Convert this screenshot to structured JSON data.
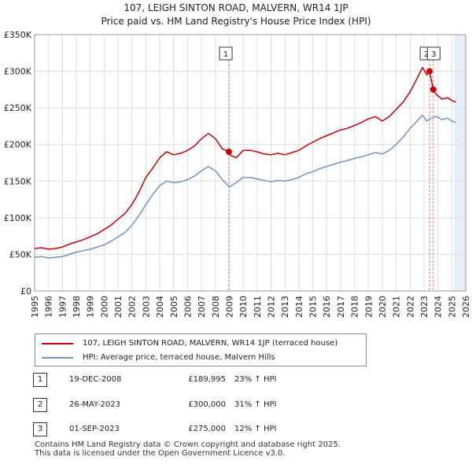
{
  "title": "107, LEIGH SINTON ROAD, MALVERN, WR14 1JP",
  "subtitle": "Price paid vs. HM Land Registry's House Price Index (HPI)",
  "colors": {
    "property": "#cc0000",
    "hpi": "#6f93c9",
    "grid": "#dddddd",
    "shade": "#e6ecf8",
    "marker_line": "#e07a7a"
  },
  "chart_data": {
    "type": "line",
    "title": "107, LEIGH SINTON ROAD, MALVERN, WR14 1JP",
    "subtitle": "Price paid vs. HM Land Registry's House Price Index (HPI)",
    "xlabel": "",
    "ylabel": "",
    "xlim": [
      1995,
      2026
    ],
    "ylim": [
      0,
      350000
    ],
    "x_ticks": [
      1995,
      1996,
      1997,
      1998,
      1999,
      2000,
      2001,
      2002,
      2003,
      2004,
      2005,
      2006,
      2007,
      2008,
      2009,
      2010,
      2011,
      2012,
      2013,
      2014,
      2015,
      2016,
      2017,
      2018,
      2019,
      2020,
      2021,
      2022,
      2023,
      2024,
      2025,
      2026
    ],
    "y_ticks": [
      {
        "value": 0,
        "label": "£0"
      },
      {
        "value": 50000,
        "label": "£50K"
      },
      {
        "value": 100000,
        "label": "£100K"
      },
      {
        "value": 150000,
        "label": "£150K"
      },
      {
        "value": 200000,
        "label": "£200K"
      },
      {
        "value": 250000,
        "label": "£250K"
      },
      {
        "value": 300000,
        "label": "£300K"
      },
      {
        "value": 350000,
        "label": "£350K"
      }
    ],
    "grid": true,
    "future_shade_from": 2025.2,
    "series": [
      {
        "name": "107, LEIGH SINTON ROAD, MALVERN, WR14 1JP (terraced house)",
        "color": "#cc0000",
        "points": [
          [
            1995.0,
            58000
          ],
          [
            1995.5,
            59000
          ],
          [
            1996.0,
            57000
          ],
          [
            1996.5,
            58000
          ],
          [
            1997.0,
            60000
          ],
          [
            1997.5,
            64000
          ],
          [
            1998.0,
            67000
          ],
          [
            1998.5,
            70000
          ],
          [
            1999.0,
            74000
          ],
          [
            1999.5,
            78000
          ],
          [
            2000.0,
            84000
          ],
          [
            2000.5,
            90000
          ],
          [
            2001.0,
            98000
          ],
          [
            2001.5,
            106000
          ],
          [
            2002.0,
            118000
          ],
          [
            2002.5,
            135000
          ],
          [
            2003.0,
            155000
          ],
          [
            2003.5,
            168000
          ],
          [
            2004.0,
            182000
          ],
          [
            2004.5,
            190000
          ],
          [
            2005.0,
            186000
          ],
          [
            2005.5,
            188000
          ],
          [
            2006.0,
            192000
          ],
          [
            2006.5,
            198000
          ],
          [
            2007.0,
            208000
          ],
          [
            2007.5,
            215000
          ],
          [
            2008.0,
            208000
          ],
          [
            2008.5,
            194000
          ],
          [
            2008.97,
            189995
          ],
          [
            2009.1,
            185000
          ],
          [
            2009.5,
            182000
          ],
          [
            2010.0,
            192000
          ],
          [
            2010.5,
            192000
          ],
          [
            2011.0,
            190000
          ],
          [
            2011.5,
            187000
          ],
          [
            2012.0,
            186000
          ],
          [
            2012.5,
            188000
          ],
          [
            2013.0,
            186000
          ],
          [
            2013.5,
            189000
          ],
          [
            2014.0,
            192000
          ],
          [
            2014.5,
            198000
          ],
          [
            2015.0,
            203000
          ],
          [
            2015.5,
            208000
          ],
          [
            2016.0,
            212000
          ],
          [
            2016.5,
            216000
          ],
          [
            2017.0,
            220000
          ],
          [
            2017.5,
            222000
          ],
          [
            2018.0,
            226000
          ],
          [
            2018.5,
            230000
          ],
          [
            2019.0,
            235000
          ],
          [
            2019.5,
            238000
          ],
          [
            2020.0,
            232000
          ],
          [
            2020.5,
            238000
          ],
          [
            2021.0,
            248000
          ],
          [
            2021.5,
            258000
          ],
          [
            2022.0,
            272000
          ],
          [
            2022.5,
            290000
          ],
          [
            2022.9,
            305000
          ],
          [
            2023.2,
            295000
          ],
          [
            2023.4,
            300000
          ],
          [
            2023.67,
            275000
          ],
          [
            2023.9,
            268000
          ],
          [
            2024.3,
            262000
          ],
          [
            2024.7,
            264000
          ],
          [
            2025.0,
            260000
          ],
          [
            2025.3,
            258000
          ]
        ]
      },
      {
        "name": "HPI: Average price, terraced house, Malvern Hills",
        "color": "#6f93c9",
        "points": [
          [
            1995.0,
            46000
          ],
          [
            1995.5,
            47000
          ],
          [
            1996.0,
            45000
          ],
          [
            1996.5,
            46000
          ],
          [
            1997.0,
            47000
          ],
          [
            1997.5,
            50000
          ],
          [
            1998.0,
            53000
          ],
          [
            1998.5,
            55000
          ],
          [
            1999.0,
            57000
          ],
          [
            1999.5,
            60000
          ],
          [
            2000.0,
            63000
          ],
          [
            2000.5,
            68000
          ],
          [
            2001.0,
            74000
          ],
          [
            2001.5,
            80000
          ],
          [
            2002.0,
            90000
          ],
          [
            2002.5,
            103000
          ],
          [
            2003.0,
            118000
          ],
          [
            2003.5,
            132000
          ],
          [
            2004.0,
            144000
          ],
          [
            2004.5,
            150000
          ],
          [
            2005.0,
            148000
          ],
          [
            2005.5,
            149000
          ],
          [
            2006.0,
            152000
          ],
          [
            2006.5,
            157000
          ],
          [
            2007.0,
            164000
          ],
          [
            2007.5,
            170000
          ],
          [
            2008.0,
            164000
          ],
          [
            2008.5,
            152000
          ],
          [
            2009.0,
            142000
          ],
          [
            2009.5,
            148000
          ],
          [
            2010.0,
            155000
          ],
          [
            2010.5,
            155000
          ],
          [
            2011.0,
            153000
          ],
          [
            2011.5,
            151000
          ],
          [
            2012.0,
            149000
          ],
          [
            2012.5,
            151000
          ],
          [
            2013.0,
            150000
          ],
          [
            2013.5,
            152000
          ],
          [
            2014.0,
            155000
          ],
          [
            2014.5,
            160000
          ],
          [
            2015.0,
            163000
          ],
          [
            2015.5,
            167000
          ],
          [
            2016.0,
            170000
          ],
          [
            2016.5,
            173000
          ],
          [
            2017.0,
            176000
          ],
          [
            2017.5,
            178000
          ],
          [
            2018.0,
            181000
          ],
          [
            2018.5,
            183000
          ],
          [
            2019.0,
            186000
          ],
          [
            2019.5,
            189000
          ],
          [
            2020.0,
            187000
          ],
          [
            2020.5,
            192000
          ],
          [
            2021.0,
            200000
          ],
          [
            2021.5,
            210000
          ],
          [
            2022.0,
            222000
          ],
          [
            2022.5,
            232000
          ],
          [
            2022.9,
            240000
          ],
          [
            2023.2,
            232000
          ],
          [
            2023.5,
            236000
          ],
          [
            2023.9,
            238000
          ],
          [
            2024.3,
            234000
          ],
          [
            2024.7,
            236000
          ],
          [
            2025.0,
            232000
          ],
          [
            2025.3,
            230000
          ]
        ]
      }
    ],
    "markers": [
      {
        "label": "1",
        "x": 2008.97,
        "value": 189995,
        "badge_x": 2008.75
      },
      {
        "label": "2",
        "x": 2023.4,
        "value": 300000,
        "badge_x": 2023.18
      },
      {
        "label": "3",
        "x": 2023.67,
        "value": 275000,
        "badge_x": 2023.7
      }
    ]
  },
  "legend": {
    "items": [
      {
        "label": "107, LEIGH SINTON ROAD, MALVERN, WR14 1JP (terraced house)"
      },
      {
        "label": "HPI: Average price, terraced house, Malvern Hills"
      }
    ]
  },
  "transactions": [
    {
      "num": "1",
      "date": "19-DEC-2008",
      "price": "£189,995",
      "hpi": "23% ↑ HPI"
    },
    {
      "num": "2",
      "date": "26-MAY-2023",
      "price": "£300,000",
      "hpi": "31% ↑ HPI"
    },
    {
      "num": "3",
      "date": "01-SEP-2023",
      "price": "£275,000",
      "hpi": "12% ↑ HPI"
    }
  ],
  "footer": {
    "line1": "Contains HM Land Registry data © Crown copyright and database right 2025.",
    "line2": "This data is licensed under the Open Government Licence v3.0."
  }
}
